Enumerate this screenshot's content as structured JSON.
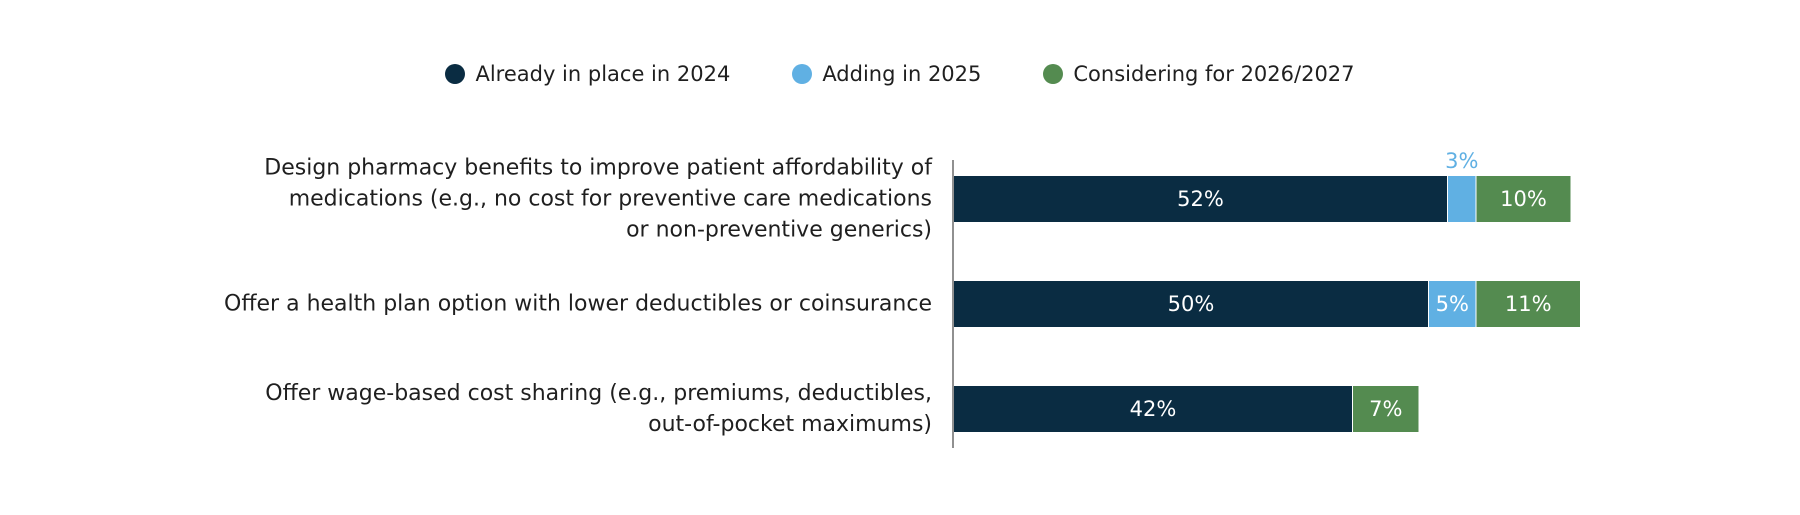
{
  "chart_data": {
    "type": "bar",
    "orientation": "horizontal",
    "stacked": true,
    "categories": [
      "Design pharmacy benefits to improve patient affordability of medications (e.g., no cost for preventive care medications or non-preventive generics)",
      "Offer a health plan option with lower deductibles or coinsurance",
      "Offer wage-based cost sharing (e.g., premiums, deductibles, out-of-pocket maximums)"
    ],
    "category_lines": [
      [
        "Design pharmacy benefits to improve patient affordability of",
        "medications (e.g., no cost for preventive care medications",
        "or non-preventive generics)"
      ],
      [
        "Offer a health plan option with lower deductibles or coinsurance"
      ],
      [
        "Offer wage-based cost sharing (e.g., premiums, deductibles,",
        "out-of-pocket maximums)"
      ]
    ],
    "series": [
      {
        "name": "Already in place in 2024",
        "color": "#0a2c42",
        "values": [
          52,
          50,
          42
        ],
        "labels": [
          "52%",
          "50%",
          "42%"
        ]
      },
      {
        "name": "Adding in 2025",
        "color": "#60b0e3",
        "values": [
          3,
          5,
          0
        ],
        "labels": [
          "3%",
          "5%",
          ""
        ]
      },
      {
        "name": "Considering for 2026/2027",
        "color": "#548b50",
        "values": [
          10,
          11,
          7
        ],
        "labels": [
          "10%",
          "11%",
          "7%"
        ]
      }
    ],
    "xlim": [
      0,
      100
    ],
    "legend_position": "top-center",
    "grid": false
  }
}
